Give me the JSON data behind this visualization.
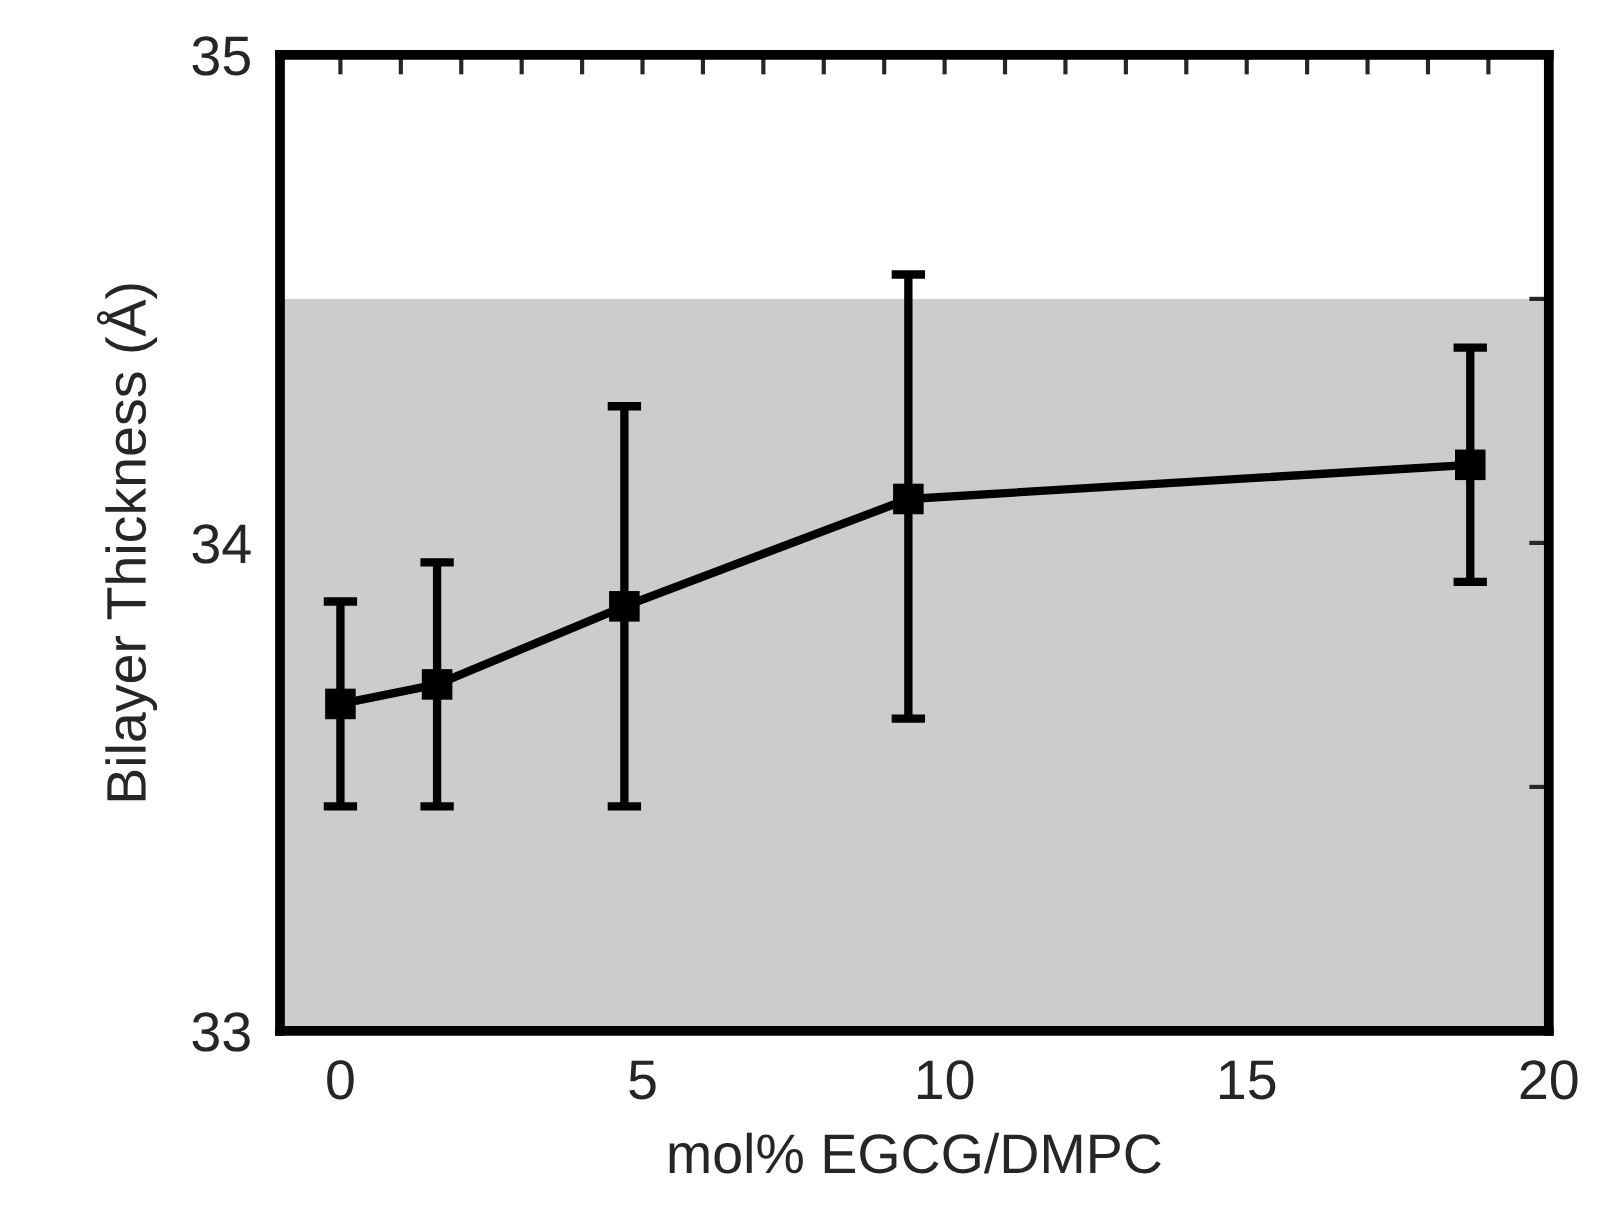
{
  "chart_data": {
    "type": "line",
    "xlabel": "mol% EGCG/DMPC",
    "ylabel": "Bilayer Thickness (Å)",
    "x": [
      0,
      1.6,
      4.7,
      9.4,
      18.7
    ],
    "series": [
      {
        "color": "#000000",
        "values": [
          33.67,
          33.71,
          33.87,
          34.09,
          34.16
        ],
        "errors": [
          [
            33.46,
            33.88
          ],
          [
            33.46,
            33.96
          ],
          [
            33.46,
            34.28
          ],
          [
            33.64,
            34.55
          ],
          [
            33.92,
            34.4
          ]
        ]
      }
    ],
    "marker": "square",
    "line_style": "solid",
    "xlim": [
      -1,
      20
    ],
    "xticks": [
      {
        "value": -1,
        "label": null
      },
      0,
      {
        "value": 1,
        "label": null
      },
      {
        "value": 2,
        "label": null
      },
      {
        "value": 3,
        "label": null
      },
      {
        "value": 4,
        "label": null
      },
      5,
      {
        "value": 6,
        "label": null
      },
      {
        "value": 7,
        "label": null
      },
      {
        "value": 8,
        "label": null
      },
      {
        "value": 9,
        "label": null
      },
      10,
      {
        "value": 11,
        "label": null
      },
      {
        "value": 12,
        "label": null
      },
      {
        "value": 13,
        "label": null
      },
      {
        "value": 14,
        "label": null
      },
      15,
      {
        "value": 16,
        "label": null
      },
      {
        "value": 17,
        "label": null
      },
      {
        "value": 18,
        "label": null
      },
      {
        "value": 19,
        "label": null
      },
      20
    ],
    "ylim": [
      33,
      35
    ],
    "yticks": [
      33,
      {
        "value": 33.5,
        "label": null
      },
      34,
      {
        "value": 34.5,
        "label": null
      },
      35
    ],
    "bands": [
      {
        "axis": "y",
        "from": 33,
        "to": 34.5,
        "color": "#cccccc"
      }
    ],
    "grid": false,
    "legend": false
  }
}
